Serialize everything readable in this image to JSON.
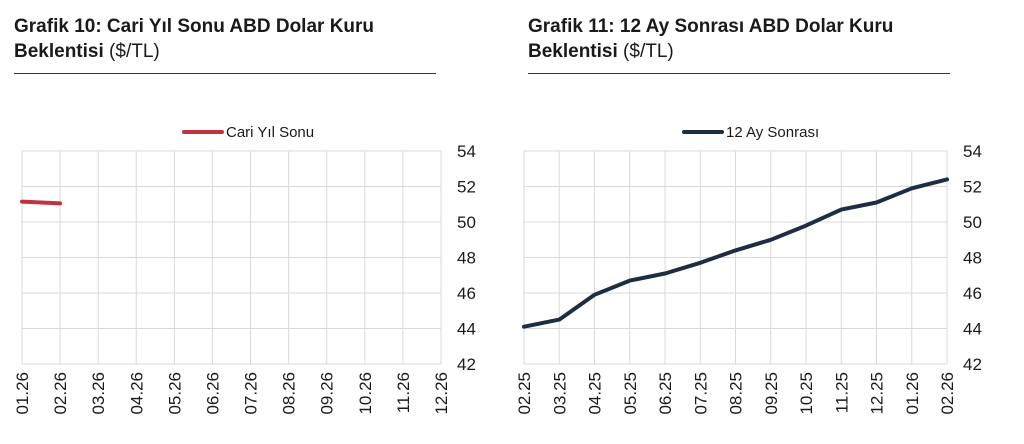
{
  "charts": [
    {
      "title_bold": "Grafik 10: Cari Yıl Sonu ABD Dolar Kuru Beklentisi",
      "title_unit": "($/TL)",
      "legend": "Cari Yıl Sonu",
      "color": "#c0323f"
    },
    {
      "title_bold": "Grafik 11: 12 Ay Sonrası ABD Dolar Kuru Beklentisi",
      "title_unit": "($/TL)",
      "legend": "12 Ay Sonrası",
      "color": "#1f2d42"
    }
  ],
  "chart_data": [
    {
      "type": "line",
      "title": "Grafik 10: Cari Yıl Sonu ABD Dolar Kuru Beklentisi ($/TL)",
      "categories": [
        "01.26",
        "02.26",
        "03.26",
        "04.26",
        "05.26",
        "06.26",
        "07.26",
        "08.26",
        "09.26",
        "10.26",
        "11.26",
        "12.26"
      ],
      "series": [
        {
          "name": "Cari Yıl Sonu",
          "values": [
            51.15,
            51.05,
            null,
            null,
            null,
            null,
            null,
            null,
            null,
            null,
            null,
            null
          ]
        }
      ],
      "ylim": [
        42,
        54
      ],
      "yticks": [
        "54",
        "52",
        "50",
        "48",
        "46",
        "44",
        "42"
      ],
      "grid": true,
      "legend_position": "top"
    },
    {
      "type": "line",
      "title": "Grafik 11: 12 Ay Sonrası ABD Dolar Kuru Beklentisi ($/TL)",
      "categories": [
        "02.25",
        "03.25",
        "04.25",
        "05.25",
        "06.25",
        "07.25",
        "08.25",
        "09.25",
        "10.25",
        "11.25",
        "12.25",
        "01.26",
        "02.26"
      ],
      "series": [
        {
          "name": "12 Ay Sonrası",
          "values": [
            44.1,
            44.5,
            45.9,
            46.7,
            47.1,
            47.7,
            48.4,
            49.0,
            49.8,
            50.7,
            51.1,
            51.9,
            52.4
          ]
        }
      ],
      "ylim": [
        42,
        54
      ],
      "yticks": [
        "54",
        "52",
        "50",
        "48",
        "46",
        "44",
        "42"
      ],
      "grid": true,
      "legend_position": "top"
    }
  ]
}
